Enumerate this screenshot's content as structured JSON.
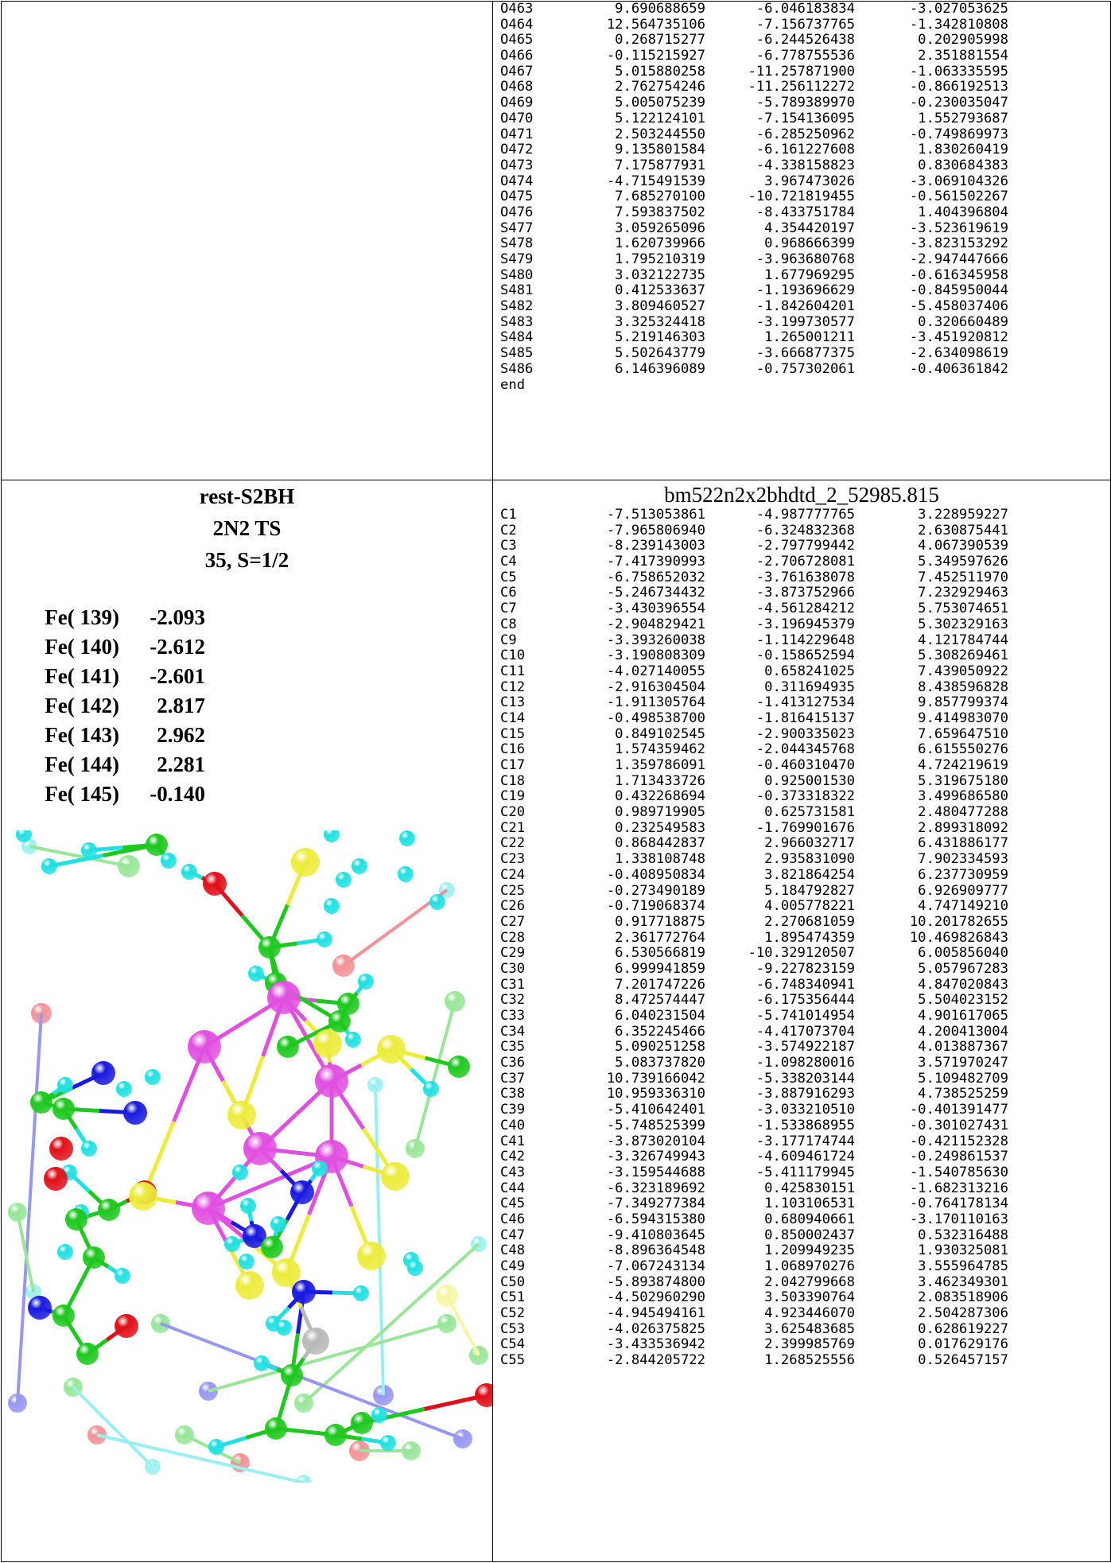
{
  "top_block": {
    "rows": [
      [
        "O463",
        "9.690688659",
        "-6.046183834",
        "-3.027053625"
      ],
      [
        "O464",
        "12.564735106",
        "-7.156737765",
        "-1.342810808"
      ],
      [
        "O465",
        "0.268715277",
        "-6.244526438",
        "0.202905998"
      ],
      [
        "O466",
        "-0.115215927",
        "-6.778755536",
        "2.351881554"
      ],
      [
        "O467",
        "5.015880258",
        "-11.257871900",
        "-1.063335595"
      ],
      [
        "O468",
        "2.762754246",
        "-11.256112272",
        "-0.866192513"
      ],
      [
        "O469",
        "5.005075239",
        "-5.789389970",
        "-0.230035047"
      ],
      [
        "O470",
        "5.122124101",
        "-7.154136095",
        "1.552793687"
      ],
      [
        "O471",
        "2.503244550",
        "-6.285250962",
        "-0.749869973"
      ],
      [
        "O472",
        "9.135801584",
        "-6.161227608",
        "1.830260419"
      ],
      [
        "O473",
        "7.175877931",
        "-4.338158823",
        "0.830684383"
      ],
      [
        "O474",
        "-4.715491539",
        "3.967473026",
        "-3.069104326"
      ],
      [
        "O475",
        "7.685270100",
        "-10.721819455",
        "-0.561502267"
      ],
      [
        "O476",
        "7.593837502",
        "-8.433751784",
        "1.404396804"
      ],
      [
        "S477",
        "3.059265096",
        "4.354420197",
        "-3.523619619"
      ],
      [
        "S478",
        "1.620739966",
        "0.968666399",
        "-3.823153292"
      ],
      [
        "S479",
        "1.795210319",
        "-3.963680768",
        "-2.947447666"
      ],
      [
        "S480",
        "3.032122735",
        "1.677969295",
        "-0.616345958"
      ],
      [
        "S481",
        "0.412533637",
        "-1.193696629",
        "-0.845950044"
      ],
      [
        "S482",
        "3.809460527",
        "-1.842604201",
        "-5.458037406"
      ],
      [
        "S483",
        "3.325324418",
        "-3.199730577",
        "0.320660489"
      ],
      [
        "S484",
        "5.219146303",
        "1.265001211",
        "-3.451920812"
      ],
      [
        "S485",
        "5.502643779",
        "-3.666877375",
        "-2.634098619"
      ],
      [
        "S486",
        "6.146396089",
        "-0.757302061",
        "-0.406361842"
      ]
    ],
    "end_label": "end"
  },
  "left_info": {
    "name": "rest-S2BH",
    "type": "2N2  TS",
    "state": "35, S=1/2",
    "spins": [
      {
        "label": "Fe( 139)",
        "value": "-2.093"
      },
      {
        "label": "Fe( 140)",
        "value": "-2.612"
      },
      {
        "label": "Fe( 141)",
        "value": "-2.601"
      },
      {
        "label": "Fe( 142)",
        "value": "2.817"
      },
      {
        "label": "Fe( 143)",
        "value": "2.962"
      },
      {
        "label": "Fe( 144)",
        "value": "2.281"
      },
      {
        "label": "Fe( 145)",
        "value": "-0.140"
      }
    ]
  },
  "structure": {
    "title": "bm522n2x2bhdtd_2_52985.815",
    "rows": [
      [
        "C1",
        "-7.513053861",
        "-4.987777765",
        "3.228959227"
      ],
      [
        "C2",
        "-7.965806940",
        "-6.324832368",
        "2.630875441"
      ],
      [
        "C3",
        "-8.239143003",
        "-2.797799442",
        "4.067390539"
      ],
      [
        "C4",
        "-7.417390993",
        "-2.706728081",
        "5.349597626"
      ],
      [
        "C5",
        "-6.758652032",
        "-3.761638078",
        "7.452511970"
      ],
      [
        "C6",
        "-5.246734432",
        "-3.873752966",
        "7.232929463"
      ],
      [
        "C7",
        "-3.430396554",
        "-4.561284212",
        "5.753074651"
      ],
      [
        "C8",
        "-2.904829421",
        "-3.196945379",
        "5.302329163"
      ],
      [
        "C9",
        "-3.393260038",
        "-1.114229648",
        "4.121784744"
      ],
      [
        "C10",
        "-3.190808309",
        "-0.158652594",
        "5.308269461"
      ],
      [
        "C11",
        "-4.027140055",
        "0.658241025",
        "7.439050922"
      ],
      [
        "C12",
        "-2.916304504",
        "0.311694935",
        "8.438596828"
      ],
      [
        "C13",
        "-1.911305764",
        "-1.413127534",
        "9.857799374"
      ],
      [
        "C14",
        "-0.498538700",
        "-1.816415137",
        "9.414983070"
      ],
      [
        "C15",
        "0.849102545",
        "-2.900335023",
        "7.659647510"
      ],
      [
        "C16",
        "1.574359462",
        "-2.044345768",
        "6.615550276"
      ],
      [
        "C17",
        "1.359786091",
        "-0.460310470",
        "4.724219619"
      ],
      [
        "C18",
        "1.713433726",
        "0.925001530",
        "5.319675180"
      ],
      [
        "C19",
        "0.432268694",
        "-0.373318322",
        "3.499686580"
      ],
      [
        "C20",
        "0.989719905",
        "0.625731581",
        "2.480477288"
      ],
      [
        "C21",
        "0.232549583",
        "-1.769901676",
        "2.899318092"
      ],
      [
        "C22",
        "0.868442837",
        "2.966032717",
        "6.431886177"
      ],
      [
        "C23",
        "1.338108748",
        "2.935831090",
        "7.902334593"
      ],
      [
        "C24",
        "-0.408950834",
        "3.821864254",
        "6.237730959"
      ],
      [
        "C25",
        "-0.273490189",
        "5.184792827",
        "6.926909777"
      ],
      [
        "C26",
        "-0.719068374",
        "4.005778221",
        "4.747149210"
      ],
      [
        "C27",
        "0.917718875",
        "2.270681059",
        "10.201782655"
      ],
      [
        "C28",
        "2.361772764",
        "1.895474359",
        "10.469826843"
      ],
      [
        "C29",
        "6.530566819",
        "-10.329120507",
        "6.005856040"
      ],
      [
        "C30",
        "6.999941859",
        "-9.227823159",
        "5.057967283"
      ],
      [
        "C31",
        "7.201747226",
        "-6.748340941",
        "4.847020843"
      ],
      [
        "C32",
        "8.472574447",
        "-6.175356444",
        "5.504023152"
      ],
      [
        "C33",
        "6.040231504",
        "-5.741014954",
        "4.901617065"
      ],
      [
        "C34",
        "6.352245466",
        "-4.417073704",
        "4.200413004"
      ],
      [
        "C35",
        "5.090251258",
        "-3.574922187",
        "4.013887367"
      ],
      [
        "C36",
        "5.083737820",
        "-1.098280016",
        "3.571970247"
      ],
      [
        "C37",
        "10.739166042",
        "-5.338203144",
        "5.109482709"
      ],
      [
        "C38",
        "10.959336310",
        "-3.887916293",
        "4.738525259"
      ],
      [
        "C39",
        "-5.410642401",
        "-3.033210510",
        "-0.401391477"
      ],
      [
        "C40",
        "-5.748525399",
        "-1.533868955",
        "-0.301027431"
      ],
      [
        "C41",
        "-3.873020104",
        "-3.177174744",
        "-0.421152328"
      ],
      [
        "C42",
        "-3.326749943",
        "-4.609461724",
        "-0.249861537"
      ],
      [
        "C43",
        "-3.159544688",
        "-5.411179945",
        "-1.540785630"
      ],
      [
        "C44",
        "-6.323189692",
        "0.425830151",
        "-1.682313216"
      ],
      [
        "C45",
        "-7.349277384",
        "1.103106531",
        "-0.764178134"
      ],
      [
        "C46",
        "-6.594315380",
        "0.680940661",
        "-3.170110163"
      ],
      [
        "C47",
        "-9.410803645",
        "0.850002437",
        "0.532316488"
      ],
      [
        "C48",
        "-8.896364548",
        "1.209949235",
        "1.930325081"
      ],
      [
        "C49",
        "-7.067243134",
        "1.068970276",
        "3.555964785"
      ],
      [
        "C50",
        "-5.893874800",
        "2.042799668",
        "3.462349301"
      ],
      [
        "C51",
        "-4.502960290",
        "3.503390764",
        "2.083518906"
      ],
      [
        "C52",
        "-4.945494161",
        "4.923446070",
        "2.504287306"
      ],
      [
        "C53",
        "-4.026375825",
        "3.625483685",
        "0.628619227"
      ],
      [
        "C54",
        "-3.433536942",
        "2.399985769",
        "0.017629176"
      ],
      [
        "C55",
        "-2.844205722",
        "1.268525556",
        "0.526457157"
      ]
    ]
  },
  "colors": {
    "carbon": "#1ec81e",
    "hydrogen": "#22e0e0",
    "oxygen": "#e0101a",
    "nitrogen": "#1a1ae0",
    "sulfur": "#ecec3c",
    "iron": "#e050e0",
    "molybdenum": "#b8b8b8"
  }
}
